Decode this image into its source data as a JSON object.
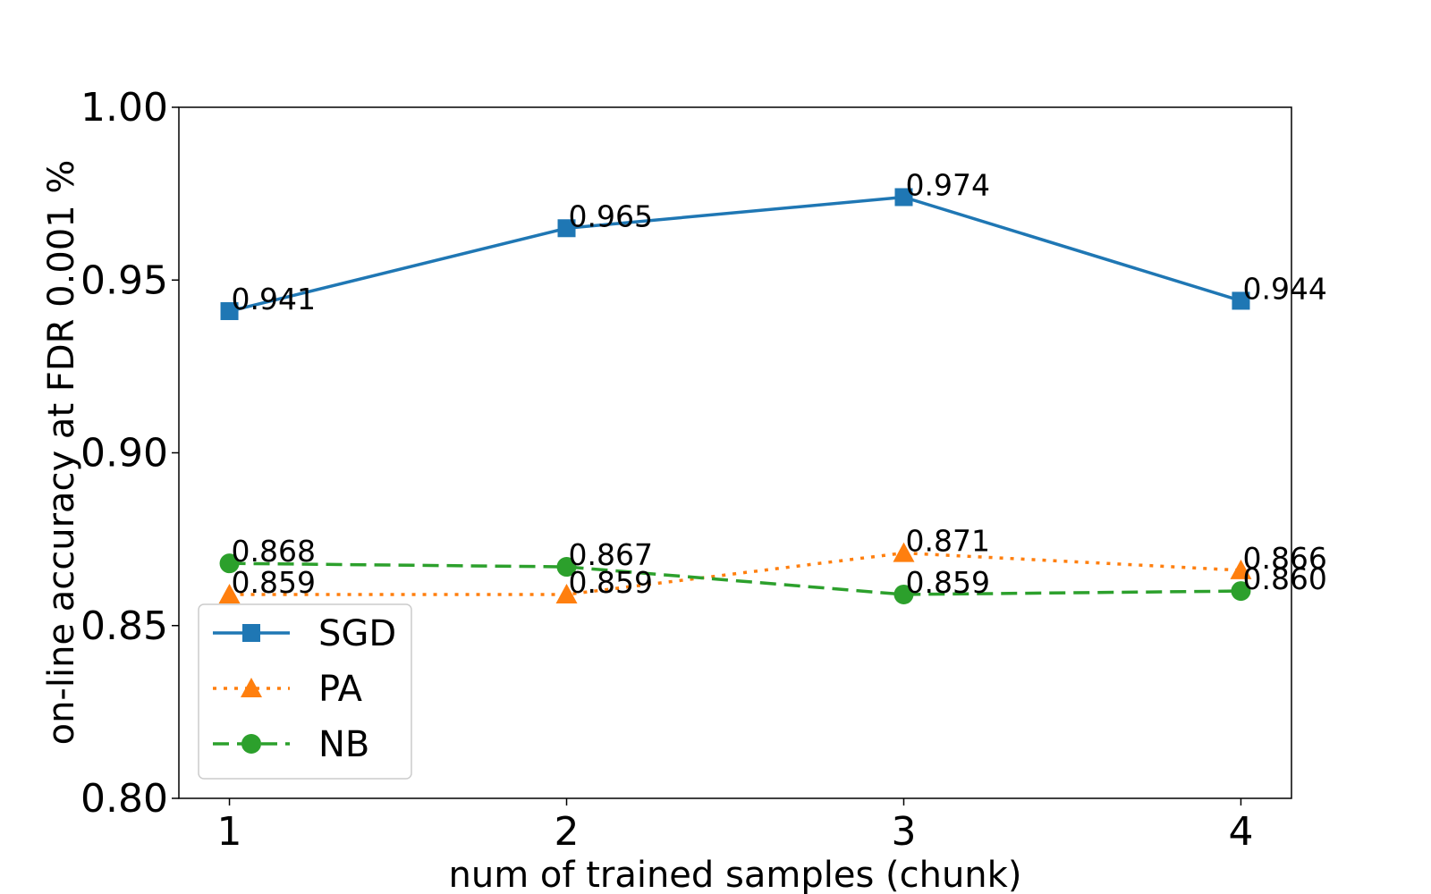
{
  "chart_data": {
    "type": "line",
    "title": "",
    "xlabel": "num of trained samples (chunk)",
    "ylabel": "on-line accuracy at FDR 0.001 %",
    "x": [
      1,
      2,
      3,
      4
    ],
    "x_tick_labels": [
      "1",
      "2",
      "3",
      "4"
    ],
    "y_tick_labels": [
      "1.00",
      "0.95",
      "0.90",
      "0.85",
      "0.80"
    ],
    "ylim": [
      0.8,
      1.0
    ],
    "xlim": [
      0.85,
      4.15
    ],
    "grid": false,
    "legend_position": "lower-left",
    "series": [
      {
        "name": "SGD",
        "values": [
          0.941,
          0.965,
          0.974,
          0.944
        ],
        "labels": [
          "0.941",
          "0.965",
          "0.974",
          "0.944"
        ],
        "color": "#1f77b4",
        "marker": "square",
        "line_style": "solid"
      },
      {
        "name": "PA",
        "values": [
          0.859,
          0.859,
          0.871,
          0.866
        ],
        "labels": [
          "0.859",
          "0.859",
          "0.871",
          "0.866"
        ],
        "color": "#ff7f0e",
        "marker": "triangle",
        "line_style": "dotted"
      },
      {
        "name": "NB",
        "values": [
          0.868,
          0.867,
          0.859,
          0.86
        ],
        "labels": [
          "0.868",
          "0.867",
          "0.859",
          "0.860"
        ],
        "color": "#2ca02c",
        "marker": "circle",
        "line_style": "dashed"
      }
    ]
  }
}
